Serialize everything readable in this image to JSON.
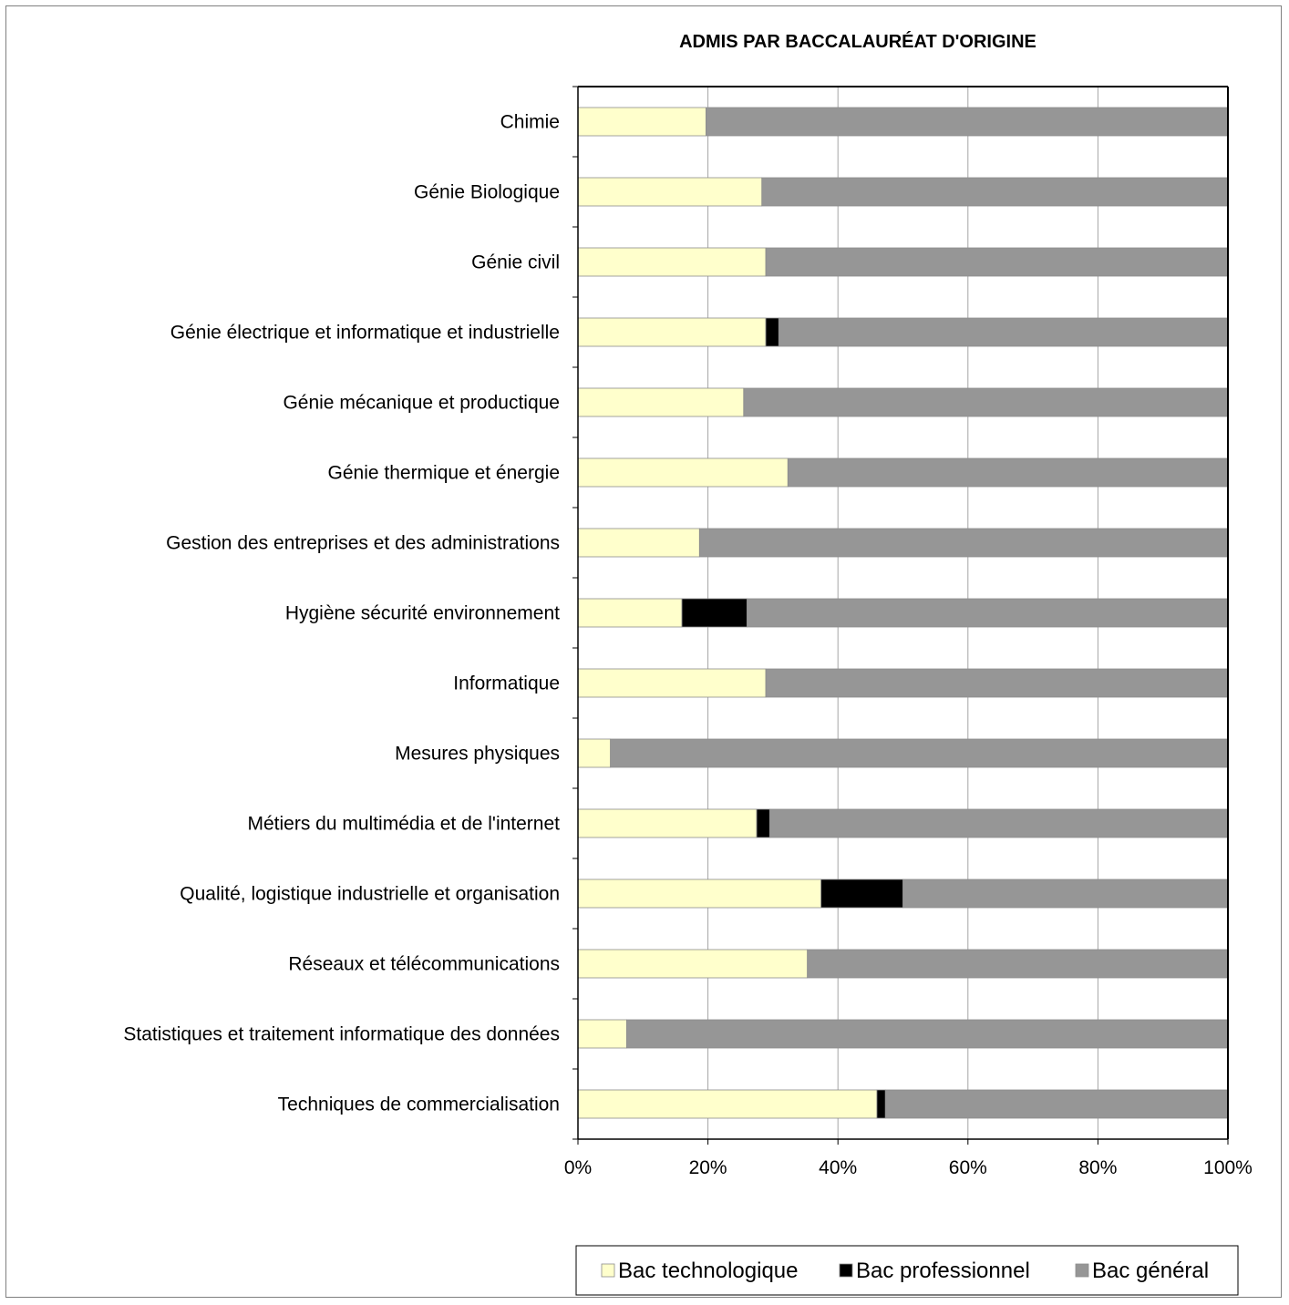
{
  "chart_data": {
    "type": "bar",
    "orientation": "horizontal",
    "stacked": "percent",
    "title": "ADMIS PAR BACCALAURÉAT D'ORIGINE",
    "xlabel": "",
    "ylabel": "",
    "xlim": [
      0,
      100
    ],
    "x_ticks": [
      "0%",
      "20%",
      "40%",
      "60%",
      "80%",
      "100%"
    ],
    "grid": true,
    "legend_position": "bottom-right",
    "categories": [
      "Chimie",
      "Génie Biologique",
      "Génie civil",
      "Génie électrique et informatique et industrielle",
      "Génie mécanique et productique",
      "Génie thermique et énergie",
      "Gestion des entreprises et des administrations",
      "Hygiène sécurité environnement",
      "Informatique",
      "Mesures physiques",
      "Métiers du multimédia et de l'internet",
      "Qualité, logistique industrielle et organisation",
      "Réseaux et télécommunications",
      "Statistiques et traitement informatique des données",
      "Techniques de commercialisation"
    ],
    "series": [
      {
        "name": "Bac technologique",
        "color": "#ffffcc",
        "values": [
          19.7,
          28.3,
          28.9,
          28.9,
          25.5,
          32.3,
          18.7,
          16.0,
          28.9,
          5.0,
          27.5,
          37.4,
          35.3,
          7.5,
          46.0
        ]
      },
      {
        "name": "Bac professionnel",
        "color": "#000000",
        "values": [
          0,
          0,
          0,
          2.0,
          0,
          0,
          0,
          10.0,
          0,
          0,
          2.0,
          12.6,
          0,
          0,
          1.3
        ]
      },
      {
        "name": "Bac général",
        "color": "#969696",
        "values": [
          80.3,
          71.7,
          71.1,
          69.1,
          74.5,
          67.7,
          81.3,
          74.0,
          71.1,
          95.0,
          70.5,
          50.0,
          64.7,
          92.5,
          52.7
        ]
      }
    ]
  }
}
